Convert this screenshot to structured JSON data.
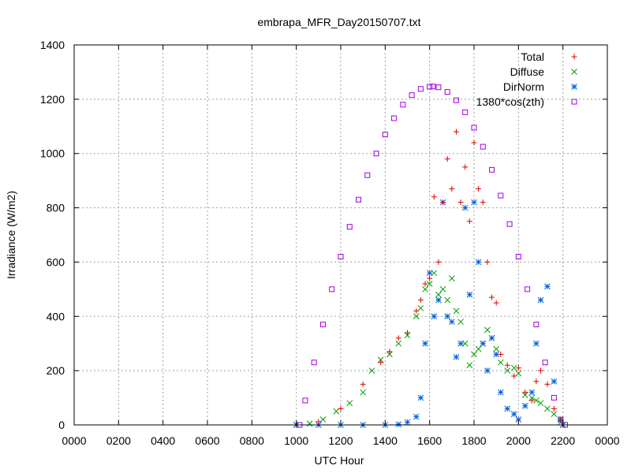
{
  "chart_data": {
    "type": "scatter",
    "title": "embrapa_MFR_Day20150707.txt",
    "xlabel": "UTC Hour",
    "ylabel": "Irradiance (W/m2)",
    "xlim": [
      0,
      2400
    ],
    "ylim": [
      0,
      1400
    ],
    "xticks": [
      "0000",
      "0200",
      "0400",
      "0600",
      "0800",
      "1000",
      "1200",
      "1400",
      "1600",
      "1800",
      "2000",
      "2200",
      "0000"
    ],
    "yticks": [
      0,
      200,
      400,
      600,
      800,
      1000,
      1200,
      1400
    ],
    "grid": true,
    "legend_position": "top-right",
    "series": [
      {
        "name": "Total",
        "marker": "plus",
        "color": "#dd0000",
        "x": [
          1000,
          1100,
          1200,
          1300,
          1380,
          1420,
          1460,
          1500,
          1540,
          1560,
          1580,
          1600,
          1620,
          1640,
          1660,
          1680,
          1700,
          1720,
          1740,
          1760,
          1780,
          1800,
          1820,
          1840,
          1860,
          1880,
          1900,
          1920,
          1950,
          1980,
          2000,
          2030,
          2060,
          2080,
          2100,
          2130,
          2160,
          2190,
          2200
        ],
        "y": [
          0,
          12,
          60,
          150,
          230,
          270,
          320,
          340,
          420,
          460,
          520,
          540,
          840,
          600,
          820,
          980,
          870,
          1080,
          820,
          950,
          750,
          1040,
          870,
          820,
          600,
          470,
          450,
          260,
          220,
          180,
          210,
          120,
          90,
          160,
          200,
          150,
          60,
          20,
          0
        ]
      },
      {
        "name": "Diffuse",
        "marker": "cross",
        "color": "#00a000",
        "x": [
          1000,
          1060,
          1120,
          1180,
          1240,
          1300,
          1340,
          1380,
          1420,
          1460,
          1500,
          1540,
          1560,
          1580,
          1600,
          1620,
          1640,
          1660,
          1680,
          1700,
          1720,
          1740,
          1760,
          1780,
          1800,
          1820,
          1840,
          1860,
          1880,
          1900,
          1920,
          1950,
          1980,
          2000,
          2030,
          2060,
          2080,
          2100,
          2130,
          2160,
          2190,
          2200
        ],
        "y": [
          0,
          5,
          20,
          50,
          80,
          120,
          200,
          240,
          260,
          300,
          330,
          400,
          430,
          500,
          520,
          560,
          480,
          500,
          460,
          540,
          420,
          380,
          300,
          220,
          260,
          280,
          300,
          350,
          320,
          280,
          230,
          200,
          210,
          190,
          110,
          100,
          90,
          80,
          60,
          40,
          10,
          0
        ]
      },
      {
        "name": "DirNorm",
        "marker": "star",
        "color": "#0060dd",
        "x": [
          1000,
          1100,
          1200,
          1300,
          1400,
          1460,
          1500,
          1540,
          1560,
          1580,
          1600,
          1620,
          1640,
          1660,
          1680,
          1700,
          1720,
          1740,
          1760,
          1780,
          1800,
          1820,
          1840,
          1860,
          1880,
          1900,
          1920,
          1950,
          1980,
          2000,
          2030,
          2060,
          2080,
          2100,
          2130,
          2160,
          2190,
          2200
        ],
        "y": [
          0,
          0,
          0,
          0,
          0,
          2,
          10,
          30,
          100,
          300,
          560,
          400,
          460,
          820,
          400,
          380,
          250,
          300,
          800,
          480,
          820,
          600,
          300,
          200,
          320,
          260,
          120,
          60,
          40,
          20,
          70,
          120,
          300,
          460,
          510,
          160,
          20,
          0
        ]
      },
      {
        "name": "1380*cos(zth)",
        "marker": "square",
        "color": "#a000e0",
        "x": [
          1015,
          1040,
          1080,
          1120,
          1160,
          1200,
          1240,
          1280,
          1320,
          1360,
          1400,
          1440,
          1480,
          1520,
          1560,
          1600,
          1615,
          1640,
          1680,
          1720,
          1760,
          1800,
          1840,
          1880,
          1920,
          1960,
          2000,
          2040,
          2080,
          2120,
          2160,
          2190,
          2210
        ],
        "y": [
          0,
          90,
          230,
          370,
          500,
          620,
          730,
          830,
          920,
          1000,
          1070,
          1130,
          1180,
          1215,
          1238,
          1246,
          1247,
          1244,
          1227,
          1196,
          1152,
          1095,
          1025,
          940,
          845,
          740,
          620,
          500,
          370,
          230,
          100,
          20,
          0
        ]
      }
    ]
  }
}
